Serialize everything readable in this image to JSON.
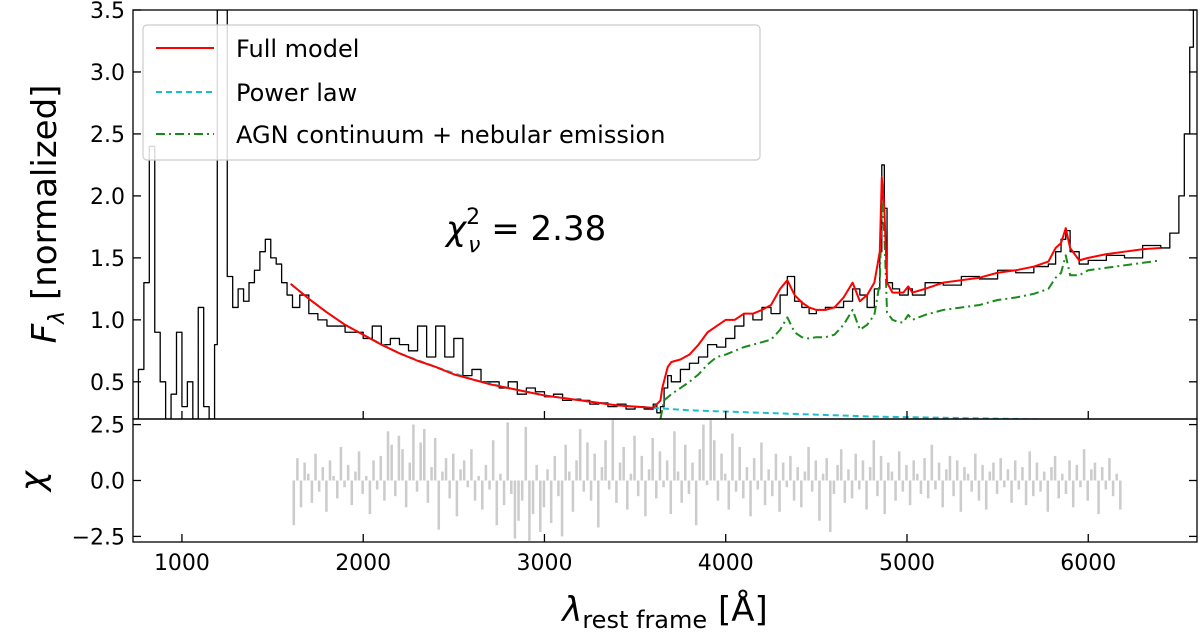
{
  "chart_data": [
    {
      "type": "line",
      "panel": "spectrum",
      "ylabel_main": "F",
      "ylabel_sub": "λ",
      "ylabel_rest": " [normalized]",
      "xlim": [
        730,
        6600
      ],
      "ylim": [
        0.2,
        3.5
      ],
      "yticks": [
        {
          "value": 0.5,
          "label": "0.5"
        },
        {
          "value": 1.0,
          "label": "1.0"
        },
        {
          "value": 1.5,
          "label": "1.5"
        },
        {
          "value": 2.0,
          "label": "2.0"
        },
        {
          "value": 2.5,
          "label": "2.5"
        },
        {
          "value": 3.0,
          "label": "3.0"
        },
        {
          "value": 3.5,
          "label": "3.5"
        }
      ],
      "annotation": {
        "main": "χ",
        "sup": "2",
        "sub": "ν",
        "rest": " = 2.38"
      },
      "legend": {
        "position": "top-left"
      },
      "series": [
        {
          "name": "Full model",
          "color": "#ff0000",
          "style": "solid",
          "x": [
            1600,
            1700,
            1800,
            1900,
            2000,
            2100,
            2200,
            2300,
            2400,
            2500,
            2600,
            2700,
            2800,
            2900,
            3000,
            3100,
            3200,
            3300,
            3400,
            3500,
            3600,
            3640,
            3650,
            3680,
            3700,
            3750,
            3800,
            3850,
            3900,
            3950,
            4000,
            4050,
            4100,
            4150,
            4200,
            4250,
            4300,
            4340,
            4380,
            4420,
            4460,
            4500,
            4550,
            4600,
            4650,
            4700,
            4740,
            4780,
            4820,
            4850,
            4861,
            4875,
            4890,
            4920,
            4959,
            4980,
            5007,
            5030,
            5100,
            5200,
            5300,
            5400,
            5500,
            5600,
            5700,
            5780,
            5820,
            5850,
            5876,
            5900,
            5950,
            6000,
            6100,
            6200,
            6300,
            6400
          ],
          "y": [
            1.29,
            1.17,
            1.06,
            0.96,
            0.88,
            0.8,
            0.73,
            0.67,
            0.62,
            0.56,
            0.52,
            0.48,
            0.45,
            0.42,
            0.39,
            0.37,
            0.35,
            0.33,
            0.31,
            0.3,
            0.29,
            0.35,
            0.45,
            0.62,
            0.66,
            0.68,
            0.72,
            0.8,
            0.9,
            0.95,
            1.0,
            1.0,
            1.05,
            1.05,
            1.08,
            1.12,
            1.25,
            1.32,
            1.2,
            1.14,
            1.1,
            1.08,
            1.08,
            1.1,
            1.18,
            1.3,
            1.15,
            1.2,
            1.3,
            1.55,
            2.15,
            1.9,
            1.3,
            1.22,
            1.22,
            1.22,
            1.27,
            1.22,
            1.25,
            1.3,
            1.32,
            1.34,
            1.38,
            1.4,
            1.43,
            1.47,
            1.58,
            1.62,
            1.74,
            1.58,
            1.48,
            1.5,
            1.53,
            1.55,
            1.57,
            1.58
          ]
        },
        {
          "name": "Power law",
          "color": "#17bfcf",
          "style": "dashed",
          "x": [
            1600,
            1700,
            1800,
            1900,
            2000,
            2200,
            2400,
            2600,
            2800,
            3000,
            3200,
            3400,
            3600,
            3800,
            4000,
            4200,
            4400,
            4600,
            4800,
            5000,
            5200,
            5400,
            5600,
            5800,
            6000,
            6200,
            6400
          ],
          "y": [
            1.29,
            1.17,
            1.06,
            0.96,
            0.88,
            0.73,
            0.62,
            0.52,
            0.45,
            0.39,
            0.35,
            0.31,
            0.29,
            0.27,
            0.26,
            0.25,
            0.24,
            0.23,
            0.22,
            0.215,
            0.21,
            0.205,
            0.2,
            0.195,
            0.19,
            0.185,
            0.18
          ]
        },
        {
          "name": "AGN continuum + nebular emission",
          "color": "#1a8a1a",
          "style": "dashdot",
          "x": [
            3640,
            3660,
            3700,
            3750,
            3800,
            3850,
            3900,
            3950,
            4000,
            4050,
            4100,
            4150,
            4200,
            4250,
            4300,
            4340,
            4380,
            4420,
            4460,
            4500,
            4550,
            4600,
            4650,
            4700,
            4740,
            4780,
            4820,
            4850,
            4861,
            4875,
            4890,
            4920,
            4959,
            4980,
            5007,
            5030,
            5100,
            5200,
            5300,
            5400,
            5500,
            5600,
            5700,
            5780,
            5820,
            5850,
            5876,
            5900,
            5950,
            6000,
            6100,
            6200,
            6300,
            6400
          ],
          "y": [
            0.2,
            0.35,
            0.4,
            0.45,
            0.5,
            0.56,
            0.64,
            0.7,
            0.72,
            0.75,
            0.78,
            0.8,
            0.82,
            0.84,
            0.92,
            1.02,
            0.9,
            0.86,
            0.85,
            0.86,
            0.86,
            0.88,
            0.96,
            1.08,
            0.92,
            0.96,
            1.04,
            1.3,
            1.95,
            1.7,
            1.06,
            1.0,
            0.98,
            0.98,
            1.04,
            1.0,
            1.04,
            1.08,
            1.1,
            1.12,
            1.16,
            1.18,
            1.21,
            1.25,
            1.34,
            1.38,
            1.52,
            1.36,
            1.36,
            1.4,
            1.42,
            1.44,
            1.46,
            1.48
          ]
        },
        {
          "name": "observed spectrum",
          "color": "#000000",
          "style": "steps",
          "x": [
            730,
            760,
            790,
            820,
            850,
            880,
            910,
            940,
            970,
            1000,
            1030,
            1060,
            1090,
            1120,
            1150,
            1180,
            1195,
            1215,
            1235,
            1250,
            1280,
            1310,
            1340,
            1370,
            1400,
            1430,
            1460,
            1490,
            1520,
            1550,
            1580,
            1610,
            1650,
            1700,
            1750,
            1800,
            1850,
            1900,
            1950,
            2000,
            2050,
            2100,
            2150,
            2200,
            2250,
            2300,
            2350,
            2400,
            2450,
            2500,
            2550,
            2600,
            2650,
            2700,
            2750,
            2800,
            2850,
            2900,
            2950,
            3000,
            3050,
            3100,
            3150,
            3200,
            3250,
            3300,
            3350,
            3400,
            3450,
            3500,
            3550,
            3600,
            3620,
            3640,
            3660,
            3680,
            3700,
            3750,
            3800,
            3850,
            3900,
            3950,
            4000,
            4050,
            4100,
            4150,
            4200,
            4250,
            4300,
            4340,
            4380,
            4420,
            4460,
            4500,
            4550,
            4600,
            4650,
            4700,
            4740,
            4780,
            4820,
            4850,
            4861,
            4875,
            4890,
            4920,
            4959,
            4980,
            5007,
            5030,
            5100,
            5200,
            5300,
            5400,
            5500,
            5600,
            5700,
            5780,
            5820,
            5850,
            5876,
            5900,
            5950,
            6000,
            6100,
            6200,
            6300,
            6400,
            6450,
            6500,
            6530,
            6560,
            6580
          ],
          "y": [
            0.2,
            0.6,
            1.3,
            2.4,
            0.9,
            0.5,
            0.2,
            0.4,
            0.9,
            0.3,
            0.5,
            0.2,
            1.1,
            0.3,
            0.2,
            0.8,
            3.5,
            3.5,
            3.5,
            1.35,
            1.1,
            1.25,
            1.15,
            1.3,
            1.4,
            1.55,
            1.65,
            1.5,
            1.45,
            1.3,
            1.2,
            1.1,
            1.2,
            1.05,
            1.0,
            0.95,
            0.95,
            0.9,
            0.9,
            0.85,
            0.95,
            0.8,
            0.85,
            0.8,
            0.75,
            0.95,
            0.7,
            0.95,
            0.7,
            0.85,
            0.55,
            0.6,
            0.5,
            0.5,
            0.45,
            0.5,
            0.4,
            0.45,
            0.42,
            0.38,
            0.4,
            0.35,
            0.36,
            0.35,
            0.32,
            0.33,
            0.3,
            0.32,
            0.28,
            0.3,
            0.28,
            0.32,
            0.25,
            0.3,
            0.45,
            0.55,
            0.5,
            0.6,
            0.65,
            0.7,
            0.8,
            0.78,
            0.85,
            0.95,
            1.05,
            1.0,
            1.1,
            1.05,
            1.2,
            1.35,
            1.15,
            1.1,
            1.05,
            1.08,
            1.1,
            1.1,
            1.15,
            1.25,
            1.2,
            1.1,
            1.25,
            1.55,
            2.25,
            1.9,
            1.3,
            1.25,
            1.2,
            1.2,
            1.25,
            1.2,
            1.3,
            1.28,
            1.35,
            1.33,
            1.4,
            1.38,
            1.43,
            1.45,
            1.55,
            1.65,
            1.72,
            1.55,
            1.45,
            1.48,
            1.52,
            1.5,
            1.6,
            1.58,
            1.7,
            2.0,
            2.5,
            3.2,
            3.5
          ]
        }
      ]
    },
    {
      "type": "bar",
      "panel": "residuals",
      "ylabel": "χ",
      "xlabel_main": "λ",
      "xlabel_sub": "rest frame",
      "xlabel_rest": " [Å]",
      "xlim": [
        730,
        6600
      ],
      "ylim": [
        -2.75,
        2.75
      ],
      "yticks": [
        {
          "value": -2.5,
          "label": "−2.5"
        },
        {
          "value": 0.0,
          "label": "0.0"
        },
        {
          "value": 2.5,
          "label": "2.5"
        }
      ],
      "xticks": [
        {
          "value": 1000,
          "label": "1000"
        },
        {
          "value": 2000,
          "label": "2000"
        },
        {
          "value": 3000,
          "label": "3000"
        },
        {
          "value": 4000,
          "label": "4000"
        },
        {
          "value": 5000,
          "label": "5000"
        },
        {
          "value": 6000,
          "label": "6000"
        }
      ],
      "color": "#cccccc",
      "x_start": 1610,
      "x_step": 20,
      "residuals": [
        -2.0,
        1.0,
        -1.2,
        0.8,
        0.3,
        -1.0,
        1.2,
        -0.5,
        0.6,
        -1.4,
        0.9,
        0.2,
        -0.8,
        1.5,
        -0.3,
        0.7,
        -1.1,
        0.4,
        1.3,
        -0.6,
        0.2,
        -1.5,
        0.9,
        -0.4,
        1.1,
        -0.9,
        2.2,
        1.6,
        -0.7,
        2.0,
        1.4,
        -1.2,
        0.8,
        2.5,
        -0.5,
        1.7,
        2.3,
        -1.0,
        0.6,
        1.9,
        -2.2,
        0.4,
        1.0,
        -0.8,
        1.2,
        -1.6,
        0.5,
        0.9,
        -0.3,
        1.4,
        -0.9,
        0.2,
        -1.3,
        0.7,
        -0.4,
        1.8,
        -2.0,
        0.3,
        -1.1,
        2.6,
        -0.6,
        -2.6,
        -1.8,
        -0.9,
        2.4,
        -2.7,
        -1.5,
        0.7,
        -2.3,
        -1.2,
        0.5,
        -1.9,
        1.1,
        -0.7,
        -2.5,
        1.6,
        0.4,
        -1.4,
        0.9,
        2.3,
        -0.5,
        1.7,
        -0.9,
        1.2,
        -2.1,
        0.6,
        1.8,
        -0.4,
        2.7,
        -1.0,
        0.8,
        1.5,
        -1.3,
        0.3,
        2.0,
        -0.7,
        1.1,
        -1.6,
        0.5,
        1.9,
        -0.8,
        1.3,
        -0.3,
        0.9,
        -1.5,
        2.2,
        0.4,
        -1.0,
        1.6,
        -0.6,
        0.8,
        -2.0,
        1.4,
        2.5,
        -0.2,
        2.7,
        1.8,
        -0.9,
        1.2,
        0.3,
        -1.3,
        2.1,
        -0.5,
        1.5,
        -0.8,
        0.6,
        -1.6,
        1.0,
        -0.4,
        1.7,
        -1.1,
        0.5,
        -0.7,
        1.2,
        -1.4,
        0.8,
        -0.3,
        1.1,
        -0.9,
        0.6,
        -1.2,
        0.4,
        1.5,
        -0.5,
        0.9,
        -1.8,
        0.3,
        1.0,
        -2.3,
        -0.6,
        0.7,
        1.4,
        -1.0,
        0.5,
        -0.8,
        1.2,
        -0.4,
        0.9,
        -1.3,
        0.6,
        1.8,
        -0.7,
        1.1,
        -1.5,
        0.8,
        0.4,
        -0.9,
        1.3,
        -0.5,
        0.7,
        -1.1,
        0.9,
        0.3,
        -0.6,
        1.0,
        -0.8,
        1.6,
        -0.4,
        0.8,
        -1.2,
        0.5,
        1.1,
        -0.7,
        0.9,
        -1.4,
        0.6,
        0.3,
        -0.5,
        1.2,
        -0.9,
        0.7,
        -1.3,
        0.4,
        0.8,
        -0.6,
        1.0,
        -0.3,
        0.5,
        -1.0,
        0.9,
        -0.4,
        0.6,
        -1.1,
        1.3,
        -0.7,
        0.8,
        -0.5,
        0.4,
        -1.4,
        0.6,
        1.1,
        -0.8,
        0.3,
        -0.6,
        0.9,
        -1.2,
        0.7,
        -0.3,
        1.4,
        -0.9,
        0.5,
        0.8,
        -1.5,
        0.6,
        -0.4,
        1.0,
        -0.7,
        0.3,
        -1.3
      ]
    }
  ]
}
